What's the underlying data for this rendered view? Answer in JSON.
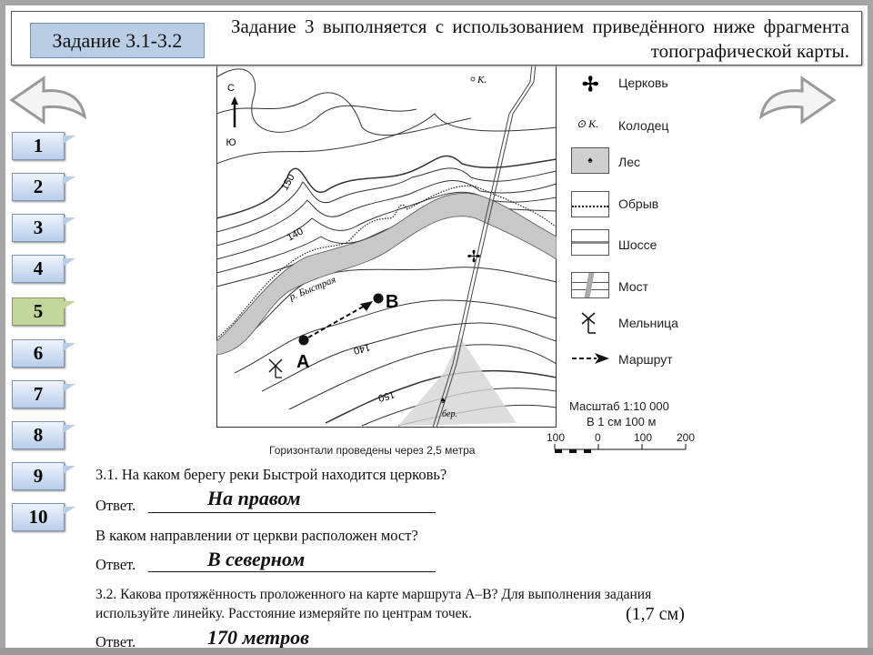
{
  "header": {
    "badge": "Задание 3.1-3.2",
    "intro": "Задание 3 выполняется с использованием приведённого ниже фрагмента топографической карты."
  },
  "nav": {
    "prev_icon": "arrow-left-icon",
    "next_icon": "arrow-right-icon",
    "items": [
      "1",
      "2",
      "3",
      "4",
      "5",
      "6",
      "7",
      "8",
      "9",
      "10"
    ],
    "active": "5",
    "colors": {
      "normal": "#b8cdea",
      "active": "#c3d69b"
    }
  },
  "map": {
    "north": "С",
    "south": "Ю",
    "well": "К.",
    "river": "р. Быстрая",
    "point_a": "А",
    "point_b": "В",
    "contour_150_top": "150",
    "contour_140_top": "140",
    "contour_140_bottom": "140",
    "contour_150_bottom": "150",
    "forest_label": "бер."
  },
  "legend": {
    "items": [
      {
        "icon": "church-icon",
        "label": "Церковь"
      },
      {
        "icon": "well-icon",
        "symbol": "К.",
        "label": "Колодец"
      },
      {
        "icon": "forest-icon",
        "label": "Лес"
      },
      {
        "icon": "cliff-icon",
        "label": "Обрыв"
      },
      {
        "icon": "highway-icon",
        "label": "Шоссе"
      },
      {
        "icon": "bridge-icon",
        "label": "Мост"
      },
      {
        "icon": "windmill-icon",
        "label": "Мельница"
      },
      {
        "icon": "route-arrow-icon",
        "label": "Маршрут"
      }
    ],
    "scale": "Масштаб 1:10 000",
    "scale_note": "В 1 см 100 м",
    "scale_ticks": [
      "100",
      "0",
      "100",
      "200"
    ],
    "contour_note": "Горизонтали проведены через 2,5 метра"
  },
  "questions": {
    "q1": "3.1. На каком берегу реки Быстрой находится церковь?",
    "answer_label": "Ответ.",
    "a1": "На правом",
    "q2": "В каком направлении от церкви расположен мост?",
    "a2": "В северном",
    "q3_line1": "3.2. Какова протяжённость проложенного на карте маршрута А–В? Для выполнения задания",
    "q3_line2": "используйте линейку. Расстояние измеряйте по центрам точек.",
    "q3_note": "(1,7 см)",
    "a3": "170 метров"
  }
}
